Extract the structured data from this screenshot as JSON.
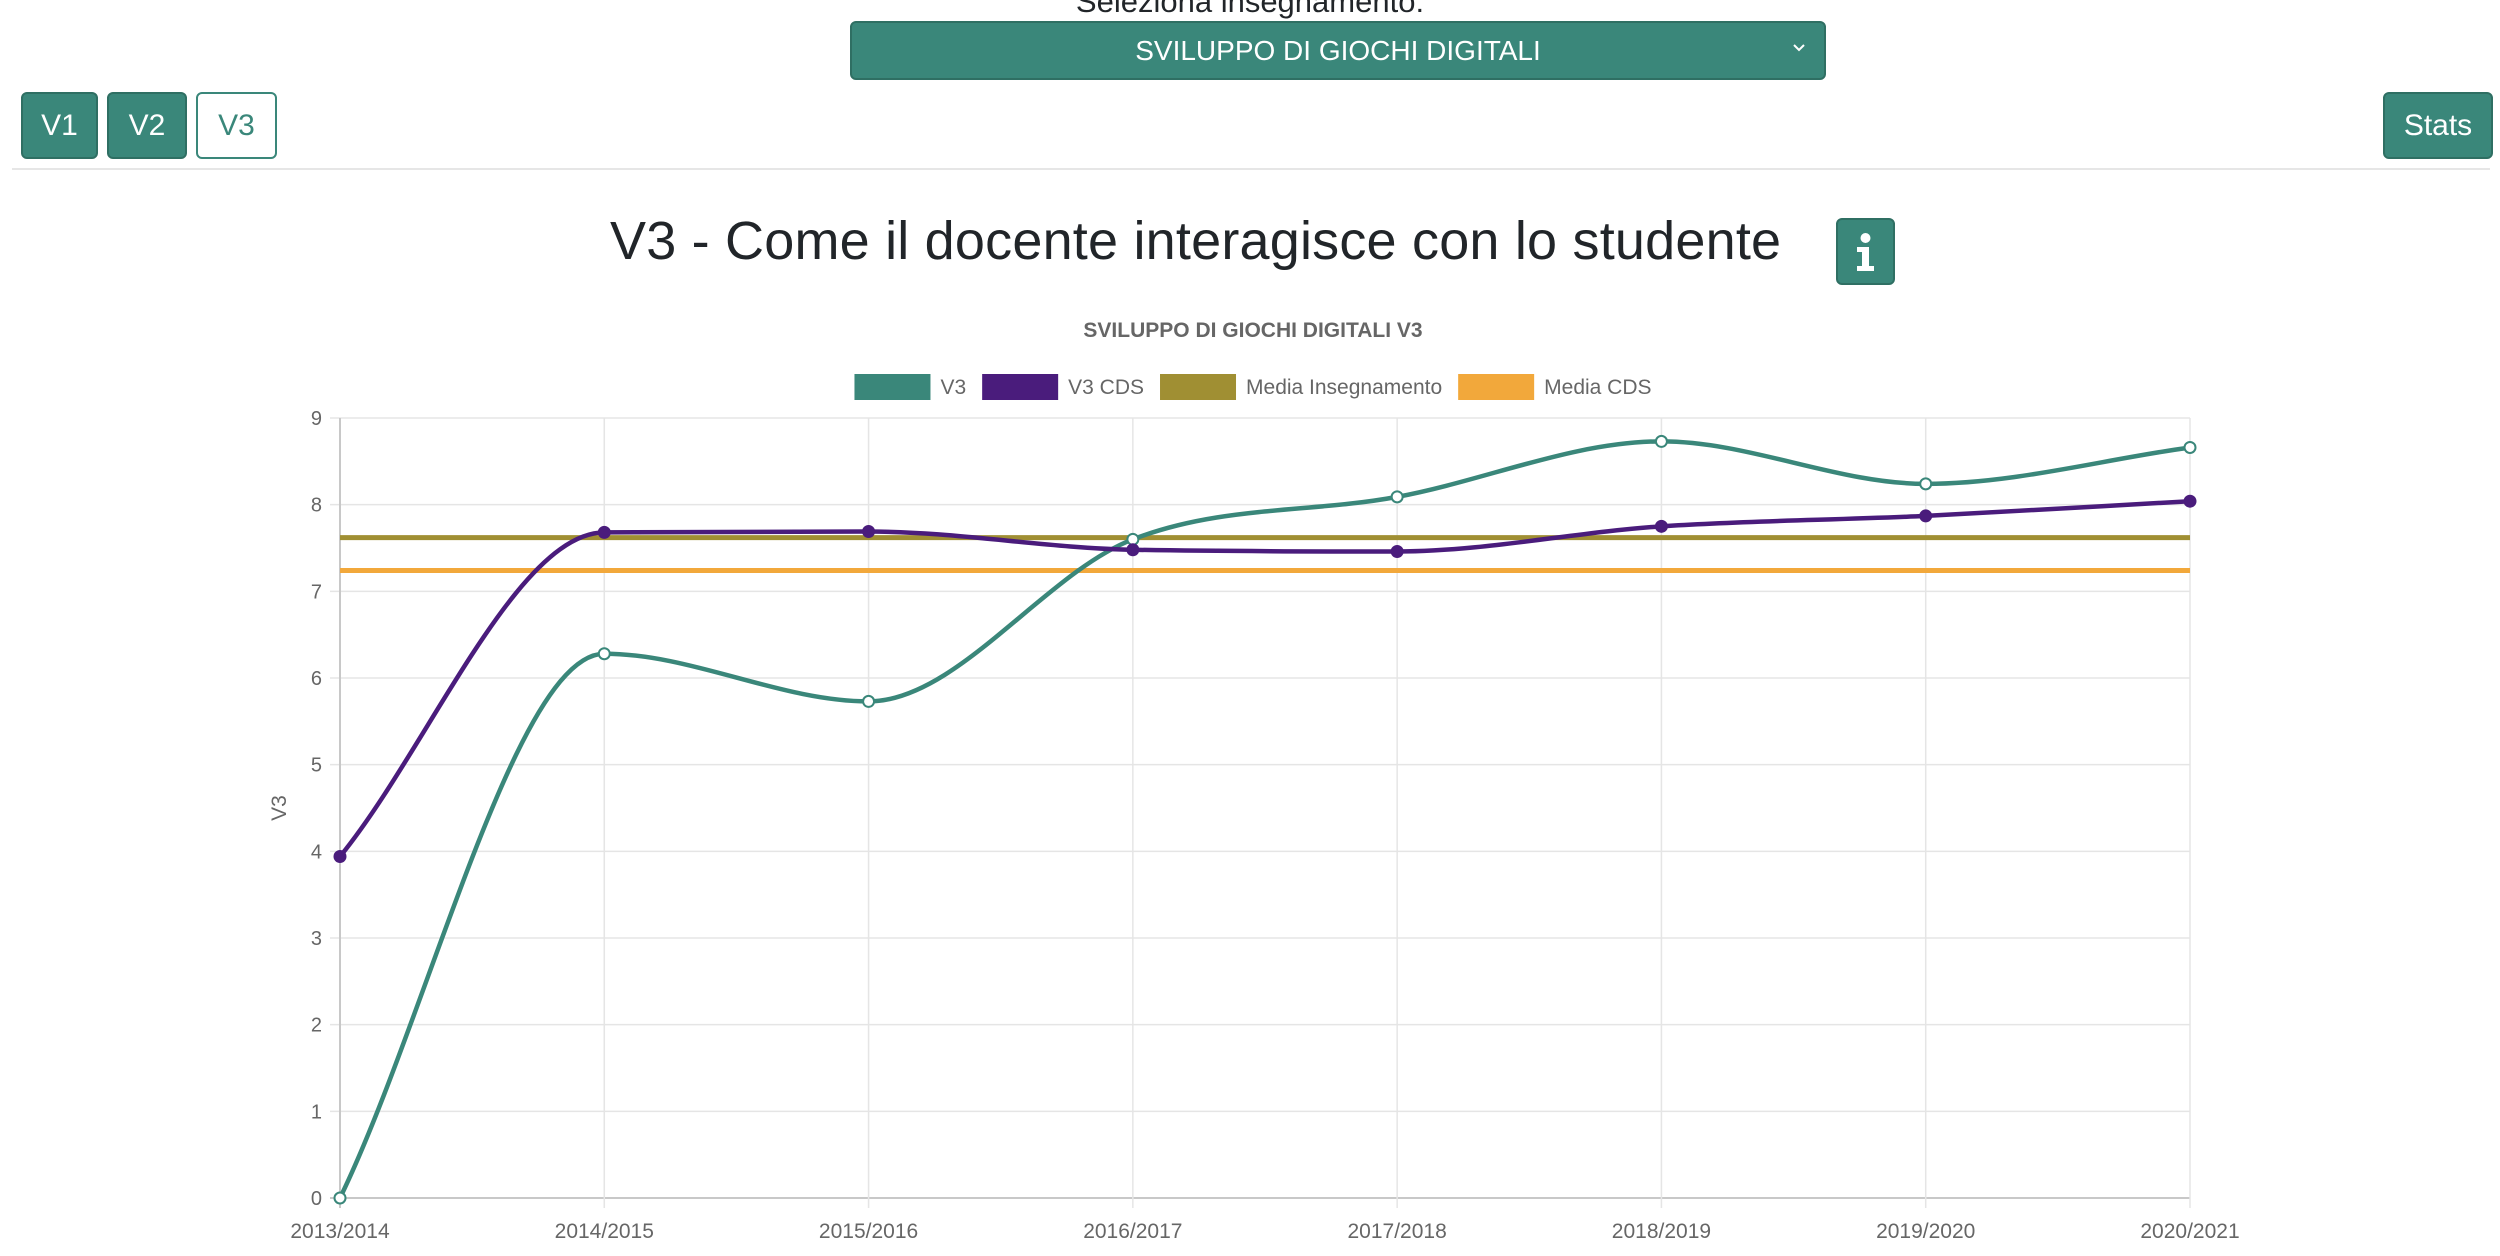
{
  "header": {
    "select_label": "Seleziona insegnamento:",
    "select_value": "SVILUPPO DI GIOCHI DIGITALI"
  },
  "tabs": [
    {
      "label": "V1",
      "active": false
    },
    {
      "label": "V2",
      "active": false
    },
    {
      "label": "V3",
      "active": true
    }
  ],
  "stats_label": "Stats",
  "page_title": "V3 - Come il docente interagisce con lo studente",
  "info_icon": "info-icon",
  "colors": {
    "accent": "#3a877a",
    "v3": "#3a877a",
    "v3_cds": "#4a1c7c",
    "media_insegnamento": "#a08f33",
    "media_cds": "#f2a83b"
  },
  "chart_data": {
    "type": "line",
    "title": "SVILUPPO DI GIOCHI DIGITALI V3",
    "xlabel": "",
    "ylabel": "V3",
    "categories": [
      "2013/2014",
      "2014/2015",
      "2015/2016",
      "2016/2017",
      "2017/2018",
      "2018/2019",
      "2019/2020",
      "2020/2021"
    ],
    "ylim": [
      0,
      9
    ],
    "yticks": [
      0,
      1,
      2,
      3,
      4,
      5,
      6,
      7,
      8,
      9
    ],
    "grid": true,
    "legend_position": "top",
    "series": [
      {
        "name": "V3",
        "values": [
          0,
          6.28,
          5.73,
          7.6,
          8.09,
          8.73,
          8.24,
          8.66
        ]
      },
      {
        "name": "V3 CDS",
        "values": [
          3.94,
          7.68,
          7.69,
          7.48,
          7.46,
          7.75,
          7.87,
          8.04
        ]
      },
      {
        "name": "Media Insegnamento",
        "values": [
          7.62,
          7.62,
          7.62,
          7.62,
          7.62,
          7.62,
          7.62,
          7.62
        ]
      },
      {
        "name": "Media CDS",
        "values": [
          7.24,
          7.24,
          7.24,
          7.24,
          7.24,
          7.24,
          7.24,
          7.24
        ]
      }
    ]
  }
}
